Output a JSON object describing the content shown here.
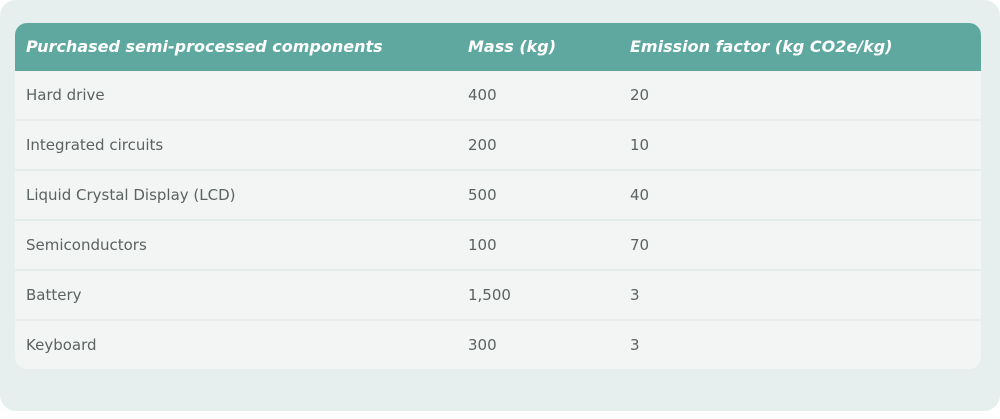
{
  "table": {
    "headers": {
      "component": "Purchased semi-processed components",
      "mass": "Mass (kg)",
      "emission": "Emission factor (kg CO2e/kg)"
    },
    "rows": [
      {
        "component": "Hard drive",
        "mass": "400",
        "emission": "20"
      },
      {
        "component": "Integrated circuits",
        "mass": "200",
        "emission": "10"
      },
      {
        "component": "Liquid Crystal Display (LCD)",
        "mass": "500",
        "emission": "40"
      },
      {
        "component": "Semiconductors",
        "mass": "100",
        "emission": "70"
      },
      {
        "component": "Battery",
        "mass": "1,500",
        "emission": "3"
      },
      {
        "component": "Keyboard",
        "mass": "300",
        "emission": "3"
      }
    ]
  },
  "colors": {
    "header_bg": "#5fa8a0",
    "outer_bg": "#e6efee",
    "table_bg": "#f3f5f4",
    "text": "#5b6361"
  }
}
